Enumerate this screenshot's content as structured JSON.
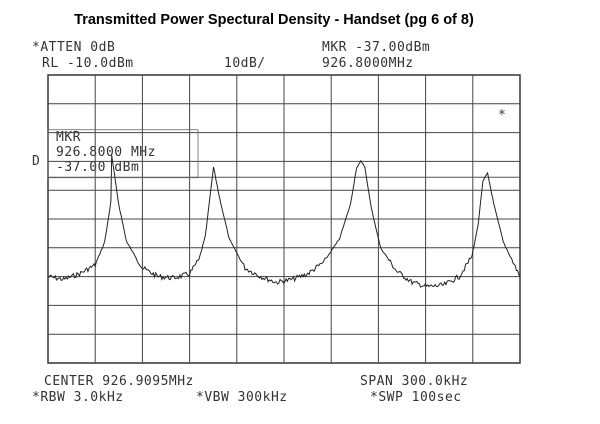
{
  "header": {
    "title": "Transmitted Power Spectural Density  - Handset (pg 6 of  8)"
  },
  "analyzer": {
    "atten": "*ATTEN 0dB",
    "ref_level": "RL -10.0dBm",
    "scale": "10dB/",
    "marker_level": "MKR -37.00dBm",
    "marker_freq": "926.8000MHz",
    "d_label": "D",
    "star_mark": "*",
    "mkr_box": {
      "label": "MKR",
      "freq": "926.8000 MHz",
      "level": "-37.00 dBm"
    },
    "center": "CENTER 926.9095MHz",
    "span": "SPAN 300.0kHz",
    "rbw": "*RBW 3.0kHz",
    "vbw": "*VBW 300kHz",
    "sweep": "*SWP 100sec"
  },
  "chart_data": {
    "type": "line",
    "title": "Transmitted Power Spectural Density  - Handset (pg 6 of  8)",
    "xlabel": "",
    "ylabel": "",
    "x_unit": "MHz",
    "y_unit": "dBm",
    "xlim": [
      926.7595,
      927.0595
    ],
    "ylim": [
      -110.0,
      -10.0
    ],
    "grid": true,
    "grid_divisions": {
      "x": 10,
      "y": 10
    },
    "series": [
      {
        "values_note": "",
        "x": [
          926.7595,
          926.7695,
          926.7795,
          926.7895,
          926.7955,
          926.7995,
          926.8,
          926.8005,
          926.8045,
          926.8095,
          926.8195,
          926.8295,
          926.8395,
          926.8495,
          926.8555,
          926.8595,
          926.8621,
          926.8647,
          926.8687,
          926.8747,
          926.8847,
          926.8947,
          926.9047,
          926.9147,
          926.9247,
          926.9347,
          926.9447,
          926.9517,
          926.9557,
          926.9583,
          926.9609,
          926.9649,
          926.9709,
          926.9809,
          926.9909,
          927.0009,
          927.0109,
          927.0209,
          927.0289,
          927.0329,
          927.0359,
          927.0389,
          927.0429,
          927.0489,
          927.0595
        ],
        "y": [
          -80.0,
          -81.0,
          -79.0,
          -76.0,
          -68.0,
          -54.0,
          -38.0,
          -40.0,
          -55.0,
          -68.0,
          -77.0,
          -80.0,
          -80.5,
          -79.0,
          -74.0,
          -66.0,
          -54.0,
          -42.0,
          -53.0,
          -67.0,
          -77.0,
          -80.0,
          -82.0,
          -81.0,
          -79.0,
          -75.0,
          -67.0,
          -55.0,
          -42.0,
          -40.0,
          -42.0,
          -56.0,
          -70.0,
          -78.0,
          -82.0,
          -83.5,
          -83.0,
          -80.0,
          -73.0,
          -62.0,
          -47.0,
          -44.0,
          -55.0,
          -68.0,
          -80.0
        ]
      }
    ]
  }
}
